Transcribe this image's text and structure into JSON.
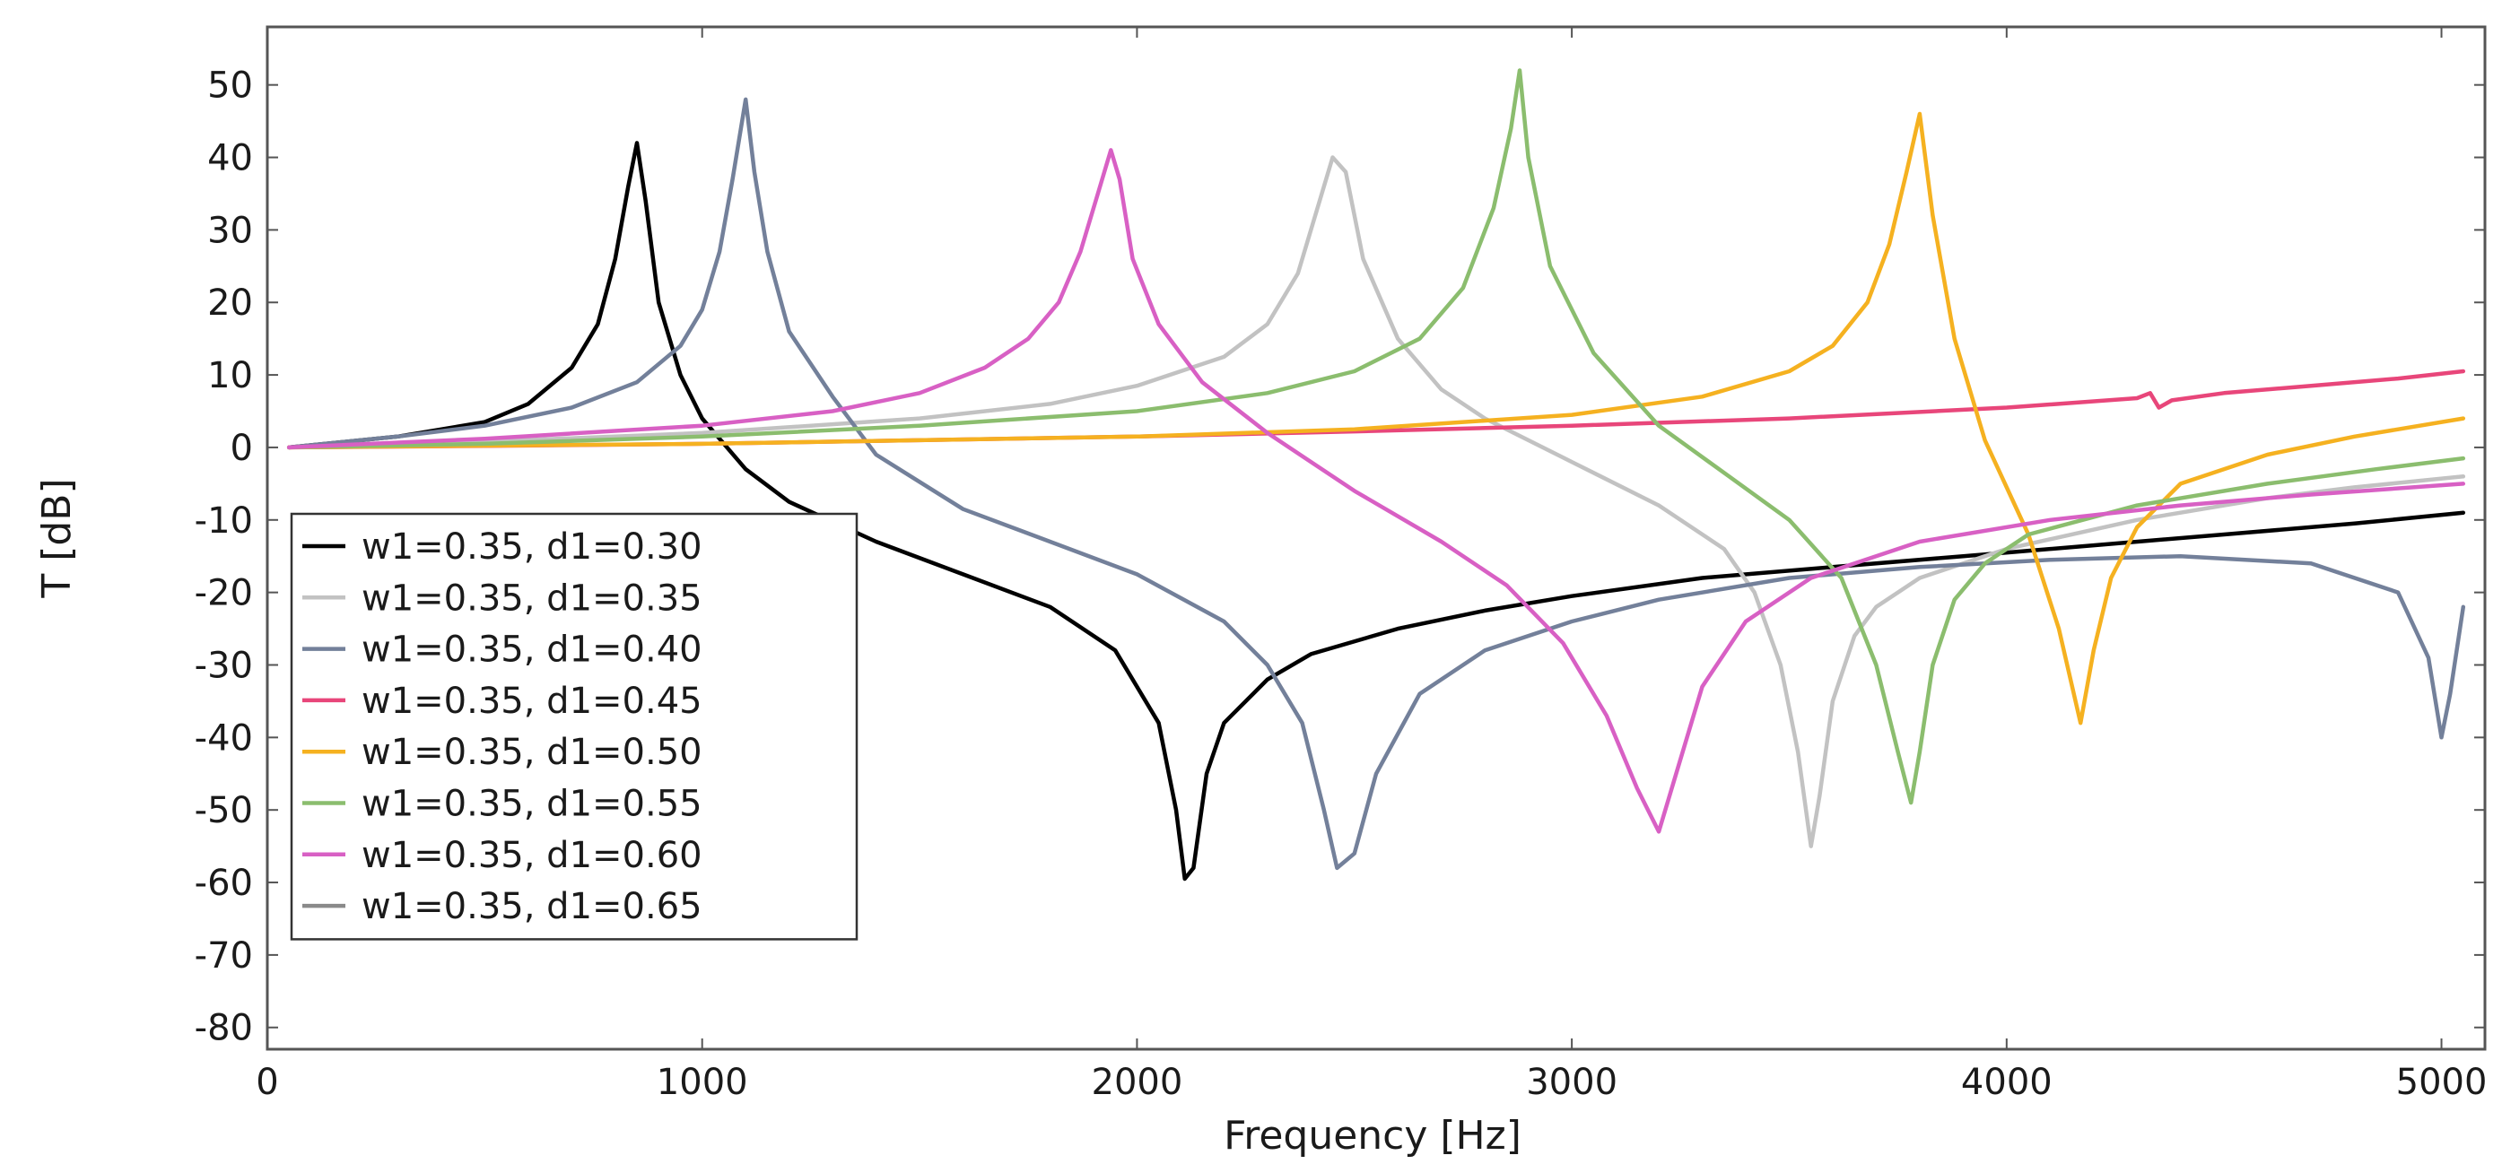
{
  "chart_data": {
    "type": "line",
    "title": "",
    "xlabel": "Frequency [Hz]",
    "ylabel": "T [dB]",
    "xlim": [
      0,
      5100
    ],
    "ylim": [
      -83,
      58
    ],
    "xticks": [
      0,
      1000,
      2000,
      3000,
      4000,
      5000
    ],
    "xtick_labels": [
      "0",
      "1000",
      "2000",
      "3000",
      "4000",
      "5000"
    ],
    "yticks": [
      50,
      40,
      30,
      20,
      10,
      0,
      -10,
      -20,
      -30,
      -40,
      -50,
      -60,
      -70,
      -80
    ],
    "ytick_labels": [
      "50",
      "40",
      "30",
      "20",
      "10",
      "0",
      "-10",
      "-20",
      "-30",
      "-40",
      "-50",
      "-60",
      "-70",
      "-80"
    ],
    "grid": false,
    "legend_position": "lower-left",
    "series": [
      {
        "name": "w1=0.35, d1=0.30",
        "color": "#000000",
        "x": [
          50,
          300,
          500,
          600,
          700,
          760,
          800,
          830,
          850,
          870,
          900,
          950,
          1000,
          1100,
          1200,
          1400,
          1600,
          1800,
          1950,
          2050,
          2090,
          2110,
          2130,
          2160,
          2200,
          2300,
          2400,
          2600,
          2800,
          3000,
          3300,
          3600,
          3900,
          4200,
          4500,
          4800,
          5050
        ],
        "y": [
          0,
          1.5,
          3.5,
          6,
          11,
          17,
          26,
          36,
          42,
          34,
          20,
          10,
          4,
          -3,
          -7.5,
          -13,
          -17.5,
          -22,
          -28,
          -38,
          -50,
          -59.5,
          -58,
          -45,
          -38,
          -32,
          -28.5,
          -25,
          -22.5,
          -20.5,
          -18,
          -16.5,
          -15,
          -13.5,
          -12,
          -10.5,
          -9
        ]
      },
      {
        "name": "w1=0.35, d1=0.35",
        "color": "#c2c2c2",
        "x": [
          50,
          500,
          1000,
          1500,
          1800,
          2000,
          2200,
          2300,
          2370,
          2420,
          2450,
          2480,
          2520,
          2600,
          2700,
          2800,
          3000,
          3200,
          3350,
          3420,
          3480,
          3520,
          3550,
          3570,
          3600,
          3650,
          3700,
          3800,
          4000,
          4300,
          4600,
          4800,
          5050
        ],
        "y": [
          0,
          0.8,
          2,
          4,
          6,
          8.5,
          12.5,
          17,
          24,
          34,
          40,
          38,
          26,
          15,
          8,
          4,
          -2,
          -8,
          -14,
          -20,
          -30,
          -42,
          -55,
          -48,
          -35,
          -26,
          -22,
          -18,
          -14,
          -10,
          -7,
          -5.5,
          -4
        ]
      },
      {
        "name": "w1=0.35, d1=0.40",
        "color": "#73809a",
        "x": [
          50,
          300,
          500,
          700,
          850,
          950,
          1000,
          1040,
          1070,
          1100,
          1120,
          1150,
          1200,
          1300,
          1400,
          1600,
          1800,
          2000,
          2200,
          2300,
          2380,
          2430,
          2460,
          2500,
          2550,
          2650,
          2800,
          3000,
          3200,
          3500,
          3800,
          4100,
          4400,
          4700,
          4900,
          4970,
          5000,
          5020,
          5050
        ],
        "y": [
          0,
          1.5,
          3,
          5.5,
          9,
          14,
          19,
          27,
          37,
          48,
          38,
          27,
          16,
          7,
          -1,
          -8.5,
          -13,
          -17.5,
          -24,
          -30,
          -38,
          -50,
          -58,
          -56,
          -45,
          -34,
          -28,
          -24,
          -21,
          -18,
          -16.5,
          -15.5,
          -15,
          -16,
          -20,
          -29,
          -40,
          -34,
          -22
        ]
      },
      {
        "name": "w1=0.35, d1=0.45",
        "color": "#e8467a",
        "x": [
          50,
          500,
          1000,
          1500,
          2000,
          2500,
          3000,
          3500,
          4000,
          4300,
          4330,
          4350,
          4380,
          4500,
          4700,
          4900,
          5050
        ],
        "y": [
          0,
          0.2,
          0.5,
          1,
          1.5,
          2.2,
          3,
          4,
          5.5,
          6.8,
          7.5,
          5.5,
          6.5,
          7.5,
          8.5,
          9.5,
          10.5
        ]
      },
      {
        "name": "w1=0.35, d1=0.50",
        "color": "#f5b120",
        "x": [
          50,
          1000,
          2000,
          2500,
          3000,
          3300,
          3500,
          3600,
          3680,
          3730,
          3770,
          3800,
          3830,
          3880,
          3950,
          4050,
          4120,
          4170,
          4200,
          4240,
          4300,
          4400,
          4600,
          4800,
          5050
        ],
        "y": [
          0,
          0.5,
          1.5,
          2.5,
          4.5,
          7,
          10.5,
          14,
          20,
          28,
          38,
          46,
          32,
          15,
          1,
          -12,
          -25,
          -38,
          -28,
          -18,
          -11,
          -5,
          -1,
          1.5,
          4
        ]
      },
      {
        "name": "w1=0.35, d1=0.55",
        "color": "#8bbd6e",
        "x": [
          50,
          500,
          1000,
          1500,
          2000,
          2300,
          2500,
          2650,
          2750,
          2820,
          2860,
          2880,
          2900,
          2950,
          3050,
          3200,
          3350,
          3500,
          3620,
          3700,
          3750,
          3780,
          3800,
          3830,
          3880,
          3950,
          4050,
          4300,
          4600,
          4850,
          5050
        ],
        "y": [
          0,
          0.5,
          1.5,
          3,
          5,
          7.5,
          10.5,
          15,
          22,
          33,
          44,
          52,
          40,
          25,
          13,
          3,
          -3.5,
          -10,
          -18,
          -30,
          -42,
          -49,
          -42,
          -30,
          -21,
          -16,
          -12,
          -8,
          -5,
          -3,
          -1.5
        ]
      },
      {
        "name": "w1=0.35, d1=0.60",
        "color": "#d860c4",
        "x": [
          50,
          500,
          1000,
          1300,
          1500,
          1650,
          1750,
          1820,
          1870,
          1910,
          1940,
          1960,
          1990,
          2050,
          2150,
          2300,
          2500,
          2700,
          2850,
          2980,
          3080,
          3150,
          3200,
          3240,
          3300,
          3400,
          3550,
          3800,
          4100,
          4400,
          4700,
          5050
        ],
        "y": [
          0,
          1.2,
          3,
          5,
          7.5,
          11,
          15,
          20,
          27,
          35,
          41,
          37,
          26,
          17,
          9,
          2,
          -6,
          -13,
          -19,
          -27,
          -37,
          -47,
          -53,
          -45,
          -33,
          -24,
          -18,
          -13,
          -10,
          -8,
          -6.5,
          -5
        ]
      },
      {
        "name": "w1=0.35, d1=0.65",
        "color": "#8a8a8a",
        "x": [],
        "y": []
      }
    ]
  }
}
